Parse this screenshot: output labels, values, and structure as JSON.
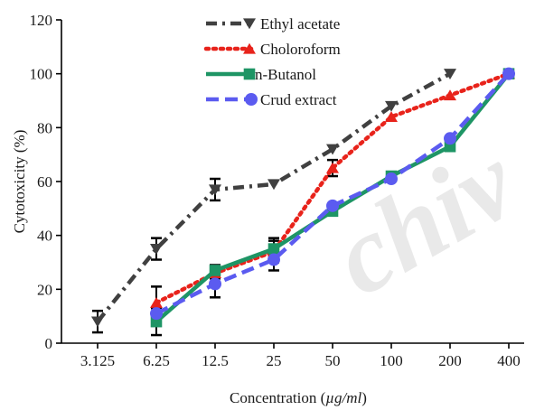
{
  "chart_data": {
    "type": "line",
    "xlabel_prefix": "Concentration (",
    "xlabel_unit": "µg/ml",
    "xlabel_suffix": ")",
    "ylabel": "Cytotoxicity (%)",
    "categories": [
      "3.125",
      "6.25",
      "12.5",
      "25",
      "50",
      "100",
      "200",
      "400"
    ],
    "ylim": [
      0,
      120
    ],
    "yticks": [
      "0",
      "20",
      "40",
      "60",
      "80",
      "100",
      "120"
    ],
    "legend_position": "top-center",
    "series": [
      {
        "name": "Ethyl acetate",
        "color": "#404040",
        "marker": "triangle-down",
        "dash": "dash-dot",
        "values": [
          8,
          35,
          57,
          59,
          72,
          88,
          100,
          null
        ],
        "errors": [
          4,
          4,
          4,
          1,
          1,
          1,
          1,
          null
        ]
      },
      {
        "name": "Choloroform",
        "color": "#e8231b",
        "marker": "triangle-up",
        "dash": "dotted",
        "values": [
          null,
          15,
          26,
          34,
          65,
          84,
          92,
          100
        ],
        "errors": [
          null,
          6,
          2,
          4,
          3,
          1,
          1,
          1
        ]
      },
      {
        "name": "n-Butanol",
        "color": "#1e9565",
        "marker": "square",
        "dash": "solid",
        "values": [
          null,
          8,
          27,
          35,
          49,
          62,
          73,
          100
        ],
        "errors": [
          null,
          5,
          2,
          4,
          1,
          1,
          1,
          1
        ]
      },
      {
        "name": "Crud extract",
        "color": "#5b5bf0",
        "marker": "circle",
        "dash": "dashed",
        "values": [
          null,
          11,
          22,
          31,
          51,
          61,
          76,
          100
        ],
        "errors": [
          null,
          2,
          5,
          4,
          1,
          1,
          1,
          1
        ]
      }
    ],
    "watermark": "chiv"
  }
}
